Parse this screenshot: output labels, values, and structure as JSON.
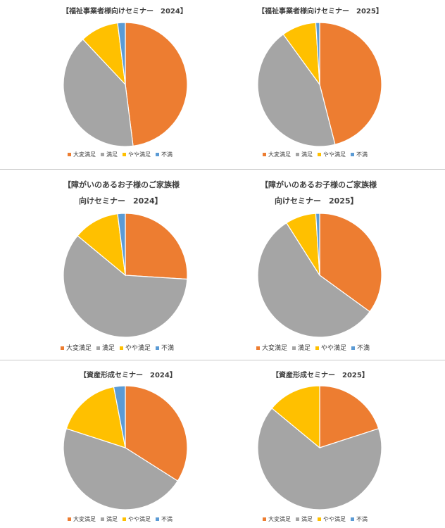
{
  "colors": {
    "大変満足": "#ED7D31",
    "満足": "#A5A5A5",
    "やや満足": "#FFC000",
    "不満": "#5B9BD5"
  },
  "legend_labels": [
    "大変満足",
    "満足",
    "やや満足",
    "不満"
  ],
  "chart_data": [
    {
      "type": "pie",
      "title": "【福祉事業者様向けセミナー　2024】",
      "categories": [
        "大変満足",
        "満足",
        "やや満足",
        "不満"
      ],
      "values": [
        48,
        40,
        10,
        2
      ],
      "legend": "bottom"
    },
    {
      "type": "pie",
      "title": "【福祉事業者様向けセミナー　2025】",
      "categories": [
        "大変満足",
        "満足",
        "やや満足",
        "不満"
      ],
      "values": [
        46,
        44,
        9,
        1
      ],
      "legend": "bottom"
    },
    {
      "type": "pie",
      "title_lines": [
        "【障がいのあるお子様のご家族様",
        "向けセミナー　2024】"
      ],
      "categories": [
        "大変満足",
        "満足",
        "やや満足",
        "不満"
      ],
      "values": [
        26,
        60,
        12,
        2
      ],
      "legend": "bottom"
    },
    {
      "type": "pie",
      "title_lines": [
        "【障がいのあるお子様のご家族様",
        "向けセミナー　2025】"
      ],
      "categories": [
        "大変満足",
        "満足",
        "やや満足",
        "不満"
      ],
      "values": [
        35,
        56,
        8,
        1
      ],
      "legend": "bottom"
    },
    {
      "type": "pie",
      "title": "【資産形成セミナー　2024】",
      "categories": [
        "大変満足",
        "満足",
        "やや満足",
        "不満"
      ],
      "values": [
        34,
        46,
        17,
        3
      ],
      "legend": "bottom"
    },
    {
      "type": "pie",
      "title": "【資産形成セミナー　2025】",
      "categories": [
        "大変満足",
        "満足",
        "やや満足",
        "不満"
      ],
      "values": [
        20,
        66,
        14,
        0
      ],
      "legend": "bottom"
    }
  ]
}
